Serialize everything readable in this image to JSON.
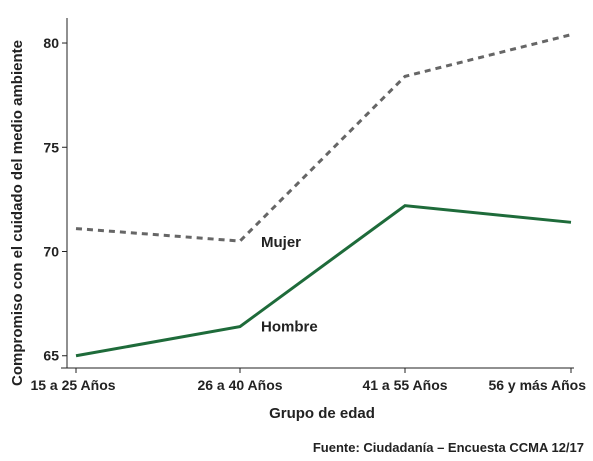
{
  "chart_data": {
    "type": "line",
    "categories": [
      "15 a 25 Años",
      "26 a 40 Años",
      "41 a 55 Años",
      "56 y más Años"
    ],
    "series": [
      {
        "name": "Mujer",
        "values": [
          71.1,
          70.5,
          78.4,
          80.4
        ],
        "color": "#666666",
        "style": "dashed"
      },
      {
        "name": "Hombre",
        "values": [
          65.0,
          66.4,
          72.2,
          71.4
        ],
        "color": "#1e6b3a",
        "style": "solid"
      }
    ],
    "xlabel": "Grupo de edad",
    "ylabel": "Compromiso con el cuidado del medio ambiente",
    "yticks": [
      65,
      70,
      75,
      80
    ],
    "ylim": [
      64.7,
      81.2
    ],
    "source": "Fuente: Ciudadanía – Encuesta CCMA 12/17",
    "grid": false
  }
}
